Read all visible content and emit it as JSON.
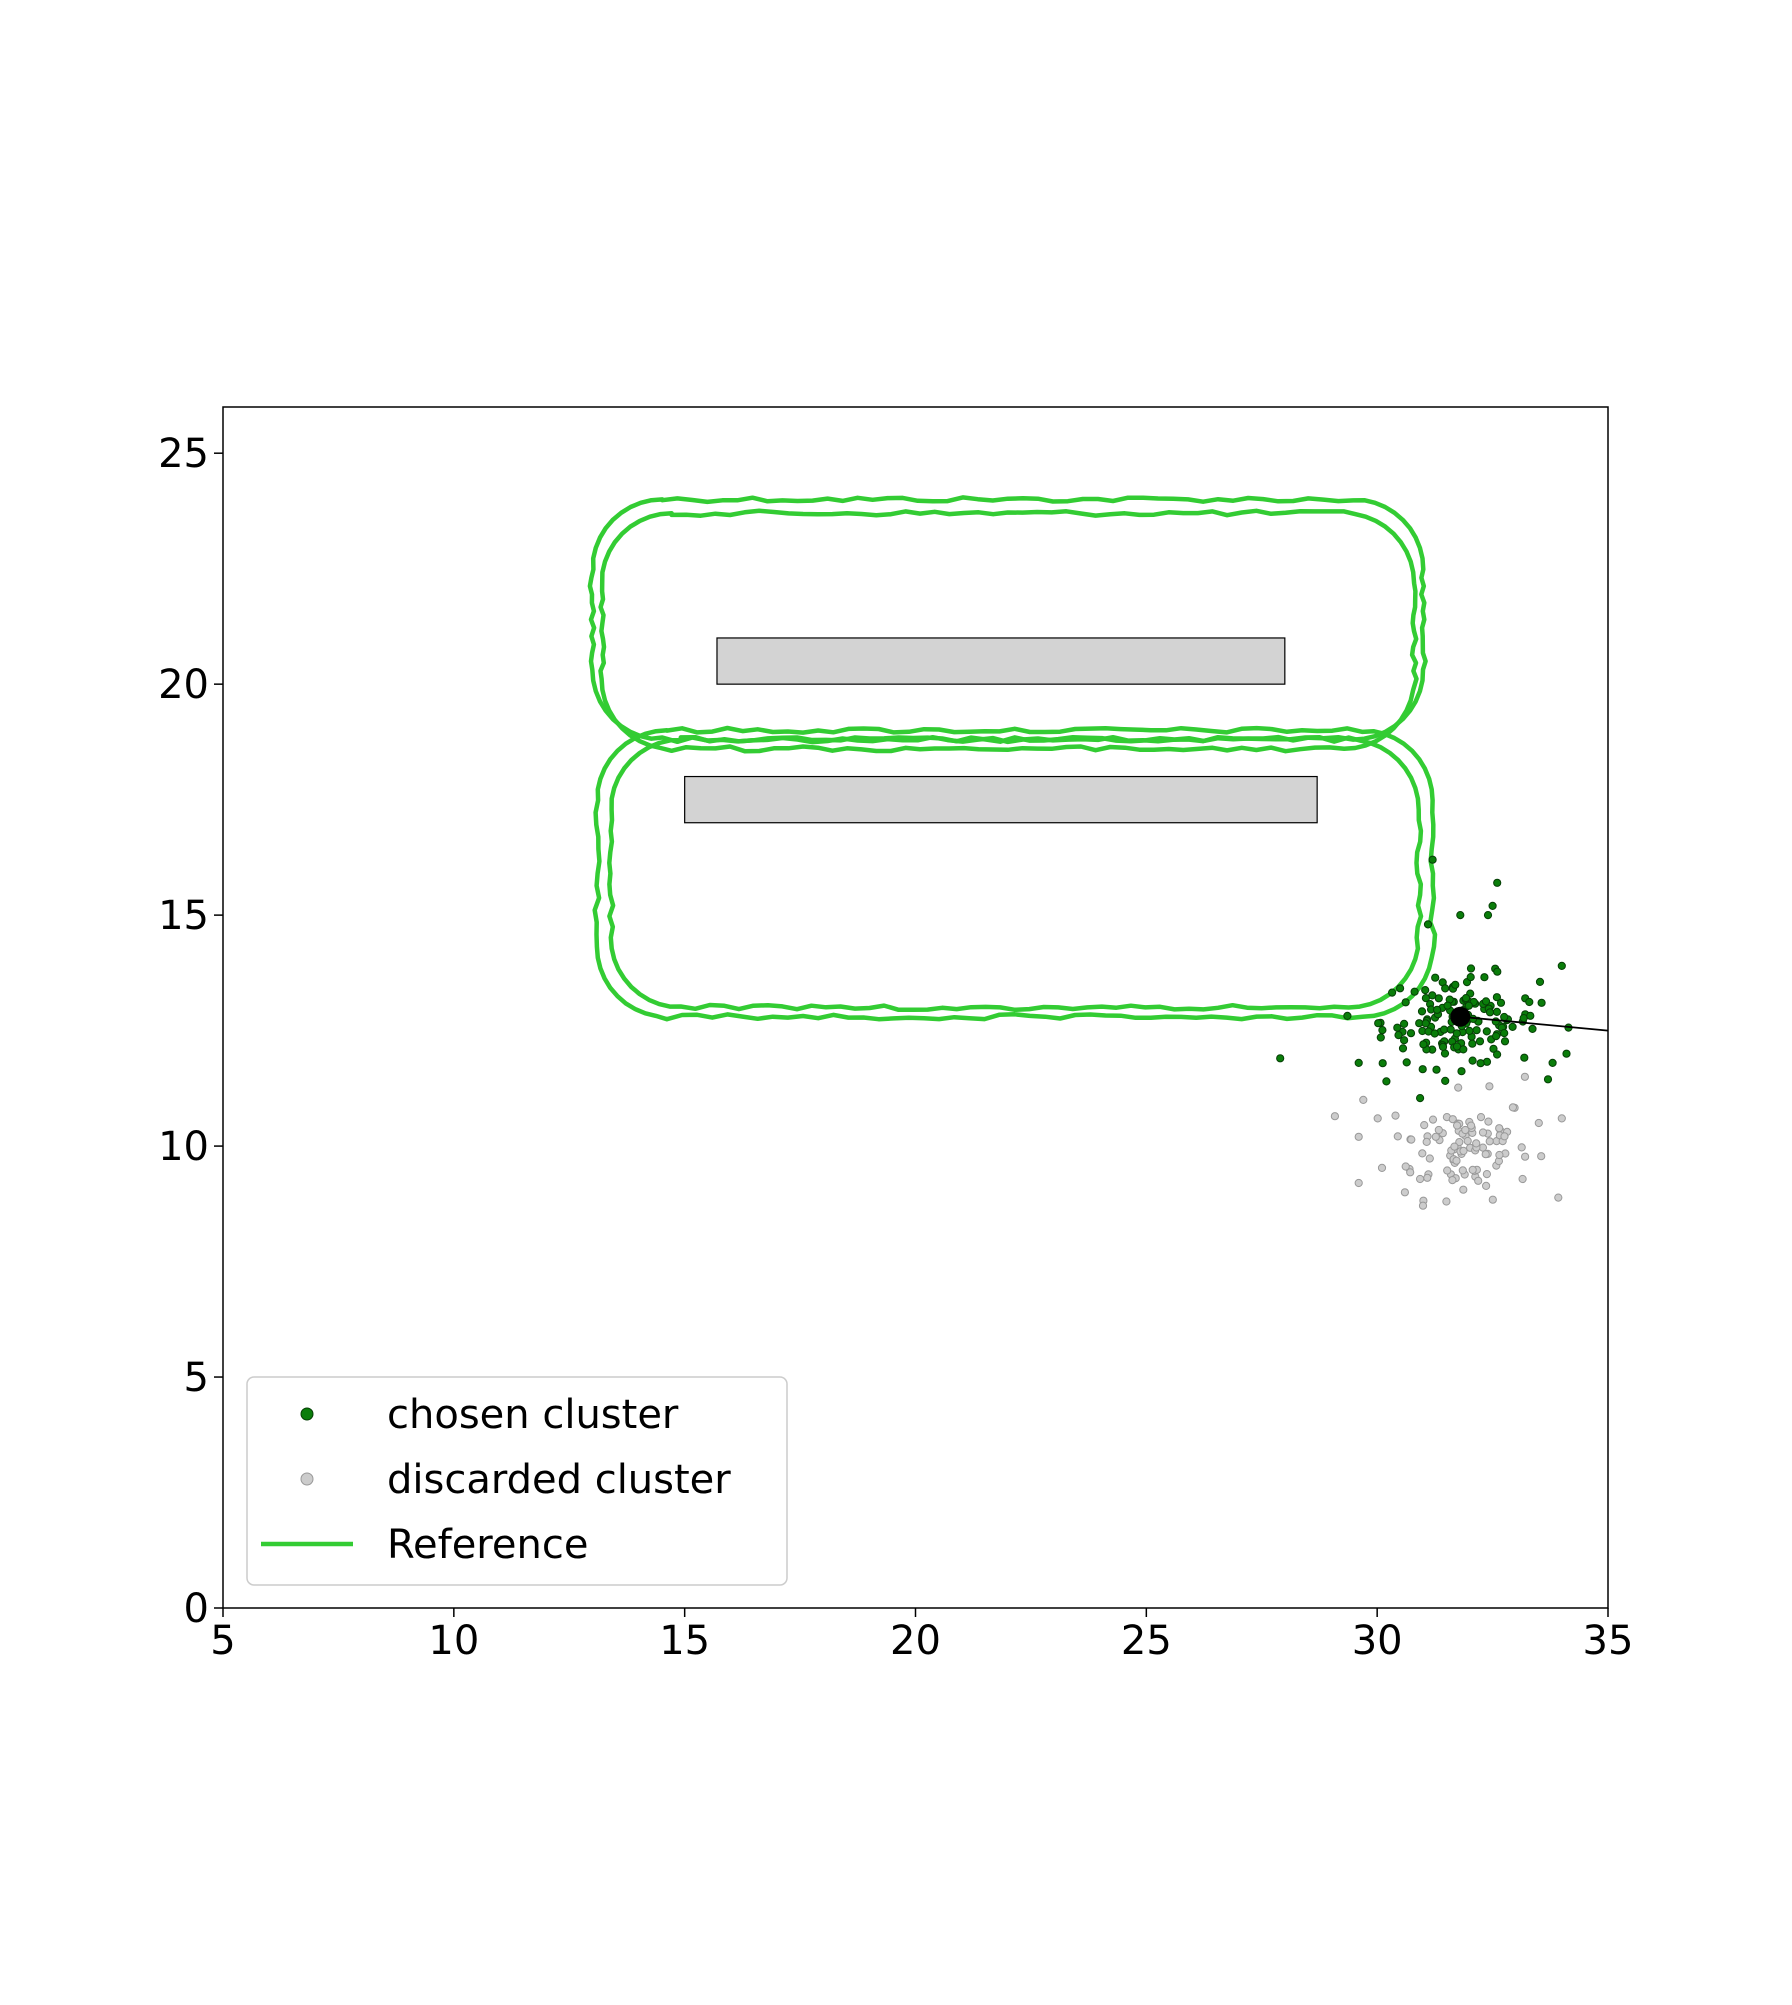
{
  "chart_data": {
    "type": "scatter",
    "title": "",
    "xlabel": "",
    "ylabel": "",
    "xlim": [
      5,
      35
    ],
    "ylim": [
      0,
      26
    ],
    "x_ticks": [
      5,
      10,
      15,
      20,
      25,
      30,
      35
    ],
    "y_ticks": [
      0,
      5,
      10,
      15,
      20,
      25
    ],
    "grid": false,
    "legend_position": "lower-left",
    "colors": {
      "chosen": "#0a7d0a",
      "discarded": "#cccccc",
      "reference": "#33cc33",
      "obstacle_fill": "#d3d3d3",
      "estimate": "#000000"
    },
    "obstacles": [
      {
        "x": [
          15.7,
          28.0
        ],
        "y": [
          20.0,
          21.0
        ]
      },
      {
        "x": [
          15.0,
          28.7
        ],
        "y": [
          17.0,
          18.0
        ]
      }
    ],
    "reference_loops": [
      {
        "x": [
          13.0,
          31.0
        ],
        "y": [
          18.8,
          24.0
        ]
      },
      {
        "x": [
          13.2,
          30.8
        ],
        "y": [
          18.6,
          23.7
        ]
      },
      {
        "x": [
          13.1,
          31.2
        ],
        "y": [
          12.8,
          19.0
        ]
      },
      {
        "x": [
          13.4,
          30.9
        ],
        "y": [
          13.0,
          18.8
        ]
      }
    ],
    "estimate_point": {
      "x": 31.8,
      "y": 12.8
    },
    "heading_line": {
      "x": [
        31.8,
        35.0
      ],
      "y": [
        12.8,
        12.5
      ]
    },
    "chosen_cluster": {
      "center": {
        "x": 31.8,
        "y": 12.7
      },
      "spread": {
        "x": 1.3,
        "y": 0.7
      },
      "count": 150,
      "sample_points": [
        {
          "x": 31.2,
          "y": 16.2
        },
        {
          "x": 32.6,
          "y": 15.7
        },
        {
          "x": 32.5,
          "y": 15.2
        },
        {
          "x": 31.8,
          "y": 15.0
        },
        {
          "x": 32.4,
          "y": 15.0
        },
        {
          "x": 31.1,
          "y": 14.8
        },
        {
          "x": 34.0,
          "y": 13.9
        },
        {
          "x": 27.9,
          "y": 11.9
        },
        {
          "x": 29.6,
          "y": 11.8
        },
        {
          "x": 30.2,
          "y": 11.4
        },
        {
          "x": 33.8,
          "y": 11.8
        },
        {
          "x": 34.1,
          "y": 12.0
        }
      ]
    },
    "discarded_cluster": {
      "center": {
        "x": 31.8,
        "y": 10.0
      },
      "spread": {
        "x": 1.2,
        "y": 0.8
      },
      "count": 100,
      "sample_points": [
        {
          "x": 29.7,
          "y": 11.0
        },
        {
          "x": 29.6,
          "y": 10.2
        },
        {
          "x": 29.6,
          "y": 9.2
        },
        {
          "x": 30.6,
          "y": 9.0
        },
        {
          "x": 31.5,
          "y": 8.8
        },
        {
          "x": 33.5,
          "y": 10.5
        },
        {
          "x": 34.0,
          "y": 10.6
        },
        {
          "x": 33.2,
          "y": 11.5
        }
      ]
    },
    "series": [
      {
        "name": "chosen cluster",
        "marker": "point",
        "color": "#0a7d0a"
      },
      {
        "name": "discarded cluster",
        "marker": "point",
        "color": "#cccccc"
      },
      {
        "name": "Reference",
        "marker": "line",
        "color": "#33cc33"
      }
    ]
  }
}
